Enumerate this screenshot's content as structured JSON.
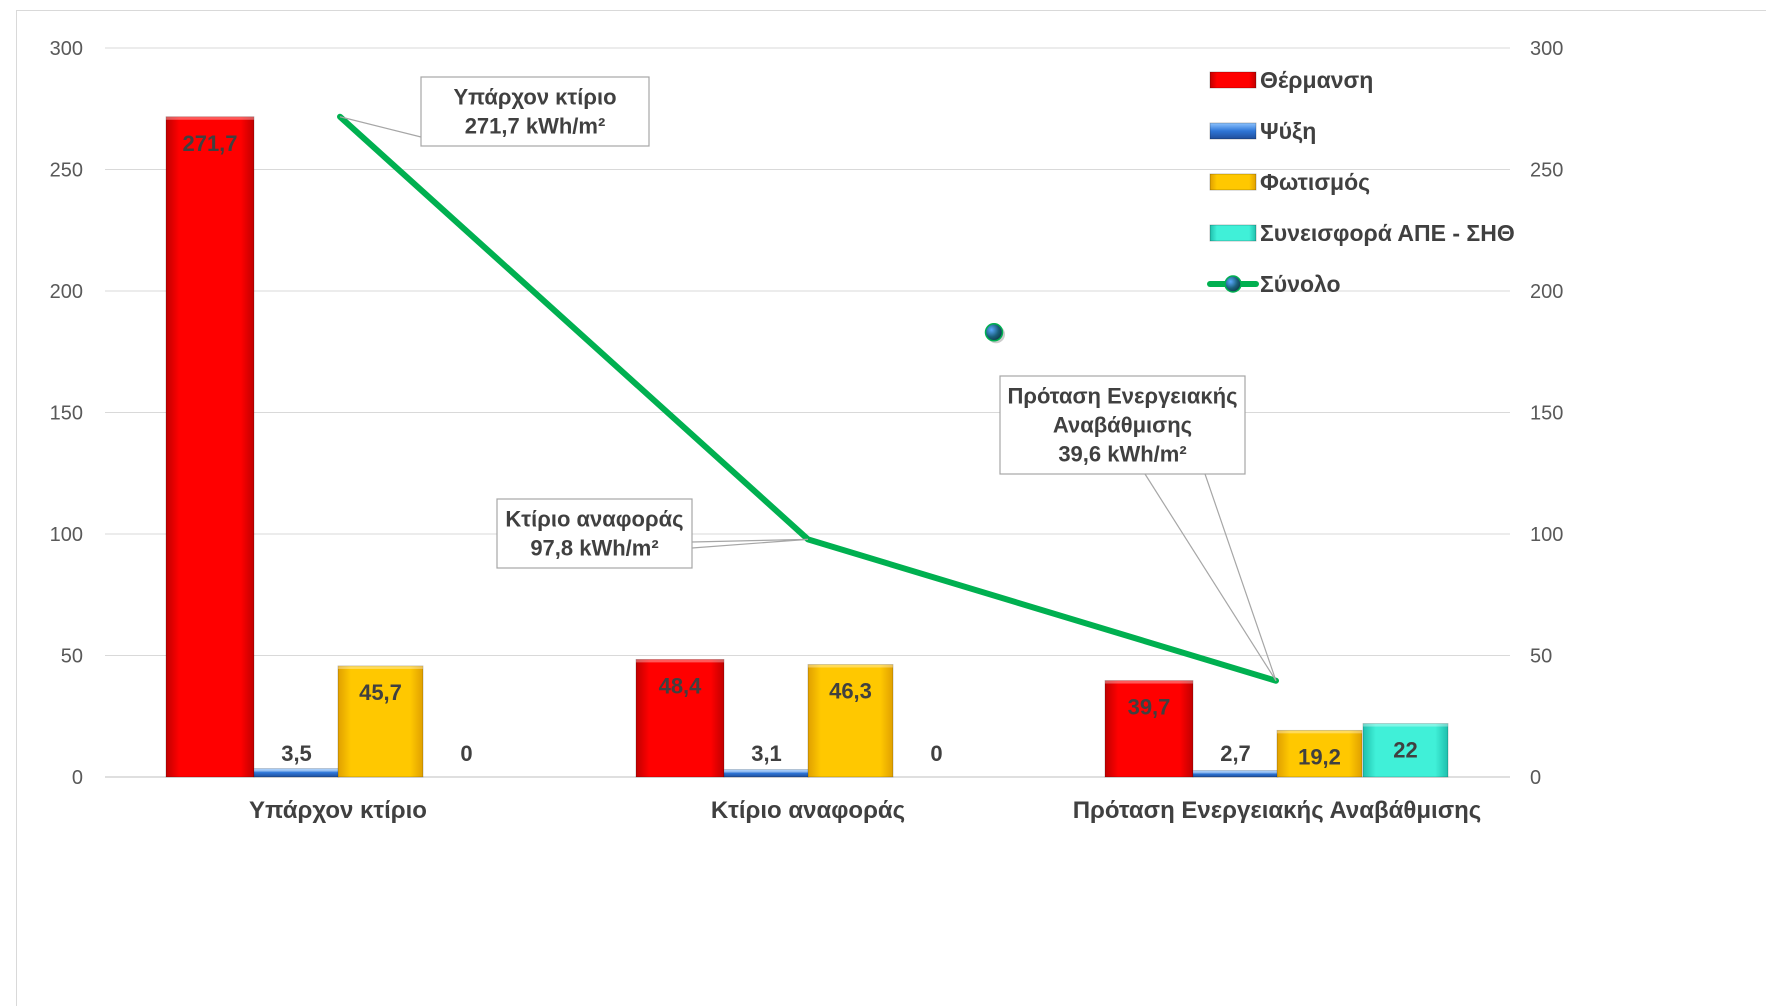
{
  "chart_data": {
    "type": "bar",
    "categories": [
      "Υπάρχον κτίριο",
      "Κτίριο αναφοράς",
      "Πρόταση Ενεργειακής Αναβάθμισης"
    ],
    "series": [
      {
        "name": "Θέρμανση",
        "values": [
          271.7,
          48.4,
          39.7
        ],
        "labels": [
          "271,7",
          "48,4",
          "39,7"
        ],
        "color": "#ff0000"
      },
      {
        "name": "Ψύξη",
        "values": [
          3.5,
          3.1,
          2.7
        ],
        "labels": [
          "3,5",
          "3,1",
          "2,7"
        ],
        "color": "#2e75d6"
      },
      {
        "name": "Φωτισμός",
        "values": [
          45.7,
          46.3,
          19.2
        ],
        "labels": [
          "45,7",
          "46,3",
          "19,2"
        ],
        "color": "#ffc000"
      },
      {
        "name": "Συνεισφορά ΑΠΕ - ΣΗΘ",
        "values": [
          0,
          0,
          22
        ],
        "labels": [
          "0",
          "0",
          "22"
        ],
        "color": "#33e0cc"
      },
      {
        "name": "Σύνολο",
        "type": "line",
        "values": [
          271.7,
          97.8,
          39.6
        ],
        "color": "#00b050"
      }
    ],
    "y_axis": {
      "min": 0,
      "max": 300,
      "ticks": [
        "0",
        "50",
        "100",
        "150",
        "200",
        "250",
        "300"
      ]
    },
    "y2_axis": {
      "min": 0,
      "max": 300,
      "ticks": [
        "0",
        "50",
        "100",
        "150",
        "200",
        "250",
        "300"
      ]
    },
    "gridlines": true,
    "legend_position": "top-right",
    "callouts": [
      {
        "lines": [
          "Υπάρχον κτίριο",
          "271,7 kWh/m²"
        ]
      },
      {
        "lines": [
          "Κτίριο αναφοράς",
          "97,8 kWh/m²"
        ]
      },
      {
        "lines": [
          "Πρόταση Ενεργειακής",
          "Αναβάθμισης",
          "39,6 kWh/m²"
        ]
      }
    ],
    "stray_marker_value": 183
  }
}
